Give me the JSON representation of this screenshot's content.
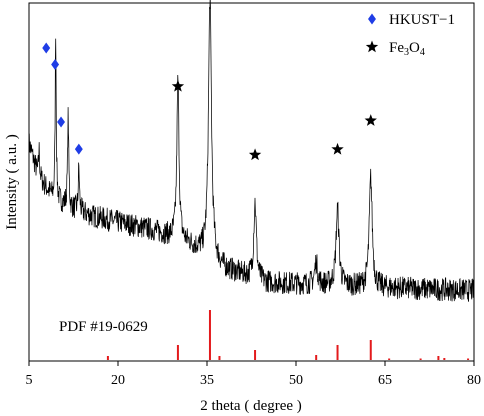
{
  "chart_data": {
    "type": "line",
    "xlabel": "2 theta ( degree )",
    "ylabel": "Intensity ( a.u. )",
    "xlim": [
      5,
      80
    ],
    "x_ticks": [
      5,
      20,
      35,
      50,
      65,
      80
    ],
    "grid": false,
    "legend_position": "top-right",
    "reference_label": "PDF #19-0629",
    "legend": [
      {
        "marker": "diamond",
        "color": "#1f3de6",
        "label": "HKUST−1",
        "sub": ""
      },
      {
        "marker": "star",
        "color": "#000000",
        "label": "Fe",
        "sub": "3",
        "label2": "O",
        "sub2": "4"
      }
    ],
    "series": [
      {
        "name": "XRD pattern",
        "color": "#000000",
        "baseline": [
          [
            5,
            0.56
          ],
          [
            6.5,
            0.44
          ],
          [
            9,
            0.36
          ],
          [
            12,
            0.32
          ],
          [
            16,
            0.29
          ],
          [
            20,
            0.27
          ],
          [
            26,
            0.24
          ],
          [
            32,
            0.19
          ],
          [
            38,
            0.1
          ],
          [
            45,
            0.05
          ],
          [
            55,
            0.04
          ],
          [
            65,
            0.03
          ],
          [
            80,
            0.02
          ]
        ],
        "peaks": [
          {
            "x": 6.7,
            "height": 0.1,
            "width": 0.12
          },
          {
            "x": 9.5,
            "height": 0.62,
            "width": 0.1
          },
          {
            "x": 11.6,
            "height": 0.33,
            "width": 0.12
          },
          {
            "x": 13.4,
            "height": 0.16,
            "width": 0.12
          },
          {
            "x": 30.1,
            "height": 0.58,
            "width": 0.22
          },
          {
            "x": 35.5,
            "height": 0.95,
            "width": 0.3
          },
          {
            "x": 43.1,
            "height": 0.28,
            "width": 0.26
          },
          {
            "x": 53.4,
            "height": 0.08,
            "width": 0.3
          },
          {
            "x": 57.0,
            "height": 0.28,
            "width": 0.3
          },
          {
            "x": 62.6,
            "height": 0.4,
            "width": 0.3
          }
        ]
      }
    ],
    "markers": [
      {
        "type": "diamond",
        "color": "#1f3de6",
        "x": 7.9,
        "y": 0.905
      },
      {
        "type": "diamond",
        "color": "#1f3de6",
        "x": 9.4,
        "y": 0.845
      },
      {
        "type": "diamond",
        "color": "#1f3de6",
        "x": 10.4,
        "y": 0.635
      },
      {
        "type": "diamond",
        "color": "#1f3de6",
        "x": 13.4,
        "y": 0.536
      },
      {
        "type": "star",
        "color": "#000000",
        "x": 30.1,
        "y": 0.765
      },
      {
        "type": "star",
        "color": "#000000",
        "x": 35.5,
        "y": 1.165
      },
      {
        "type": "star",
        "color": "#000000",
        "x": 43.1,
        "y": 0.515
      },
      {
        "type": "star",
        "color": "#000000",
        "x": 57.0,
        "y": 0.535
      },
      {
        "type": "star",
        "color": "#000000",
        "x": 62.6,
        "y": 0.64
      }
    ],
    "reference_lines": {
      "color": "#e31a1c",
      "positions": [
        18.3,
        30.1,
        35.5,
        37.1,
        43.1,
        53.4,
        57.0,
        62.6,
        65.7,
        71.0,
        74.0,
        75.0,
        79.0
      ],
      "intensities": [
        8,
        30,
        100,
        8,
        20,
        10,
        30,
        40,
        3,
        3,
        8,
        4,
        3
      ]
    }
  }
}
